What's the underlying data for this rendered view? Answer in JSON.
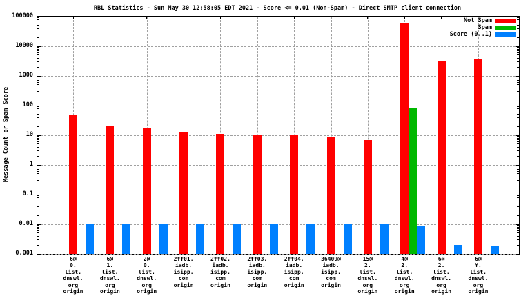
{
  "chart_data": {
    "type": "bar",
    "title": "RBL Statistics - Sun May 30 12:58:05 EDT 2021 - Score <= 0.01 (Non-Spam) - Direct SMTP client connection",
    "ylabel": "Message Count or Spam Score",
    "yscale": "log",
    "ylim": [
      0.001,
      100000
    ],
    "ytick_labels": [
      "100000",
      "10000",
      "1000",
      "100",
      "10",
      "1",
      "0.1",
      "0.01",
      "0.001"
    ],
    "grid": true,
    "legend_position": "top-right",
    "categories": [
      [
        "6@",
        "0.",
        "list.",
        "dnswl.",
        "org",
        "origin"
      ],
      [
        "6@",
        "1.",
        "list.",
        "dnswl.",
        "org",
        "origin"
      ],
      [
        "2@",
        "0.",
        "list.",
        "dnswl.",
        "org",
        "origin"
      ],
      [
        "2ff01.",
        "iadb.",
        "isipp.",
        "com",
        "origin"
      ],
      [
        "2ff02.",
        "iadb.",
        "isipp.",
        "com",
        "origin"
      ],
      [
        "2ff03.",
        "iadb.",
        "isipp.",
        "com",
        "origin"
      ],
      [
        "2ff04.",
        "iadb.",
        "isipp.",
        "com",
        "origin"
      ],
      [
        "36409@",
        "iadb.",
        "isipp.",
        "com",
        "origin"
      ],
      [
        "15@",
        "2.",
        "list.",
        "dnswl.",
        "org",
        "origin"
      ],
      [
        "4@",
        "2.",
        "list.",
        "dnswl.",
        "org",
        "origin"
      ],
      [
        "6@",
        "2.",
        "list.",
        "dnswl.",
        "org",
        "origin"
      ],
      [
        "6@",
        "Y.",
        "list.",
        "dnswl.",
        "org",
        "origin"
      ]
    ],
    "series": [
      {
        "name": "Not Spam",
        "color": "#ff0000",
        "values": [
          50,
          20,
          17,
          13,
          11,
          10,
          10,
          9,
          7,
          60000,
          3200,
          3600
        ]
      },
      {
        "name": "Spam",
        "color": "#00b800",
        "values": [
          0,
          0,
          0,
          0,
          0,
          0,
          0,
          0,
          0,
          80,
          0,
          0
        ]
      },
      {
        "name": "Score (0..1)",
        "color": "#0080ff",
        "values": [
          0.01,
          0.01,
          0.01,
          0.01,
          0.01,
          0.01,
          0.01,
          0.01,
          0.01,
          0.009,
          0.002,
          0.0018
        ]
      }
    ]
  },
  "colors": {
    "not_spam": "#ff0000",
    "spam": "#00b800",
    "score": "#0080ff",
    "grid": "#a0a0a0",
    "axis": "#000000",
    "background": "#ffffff"
  }
}
